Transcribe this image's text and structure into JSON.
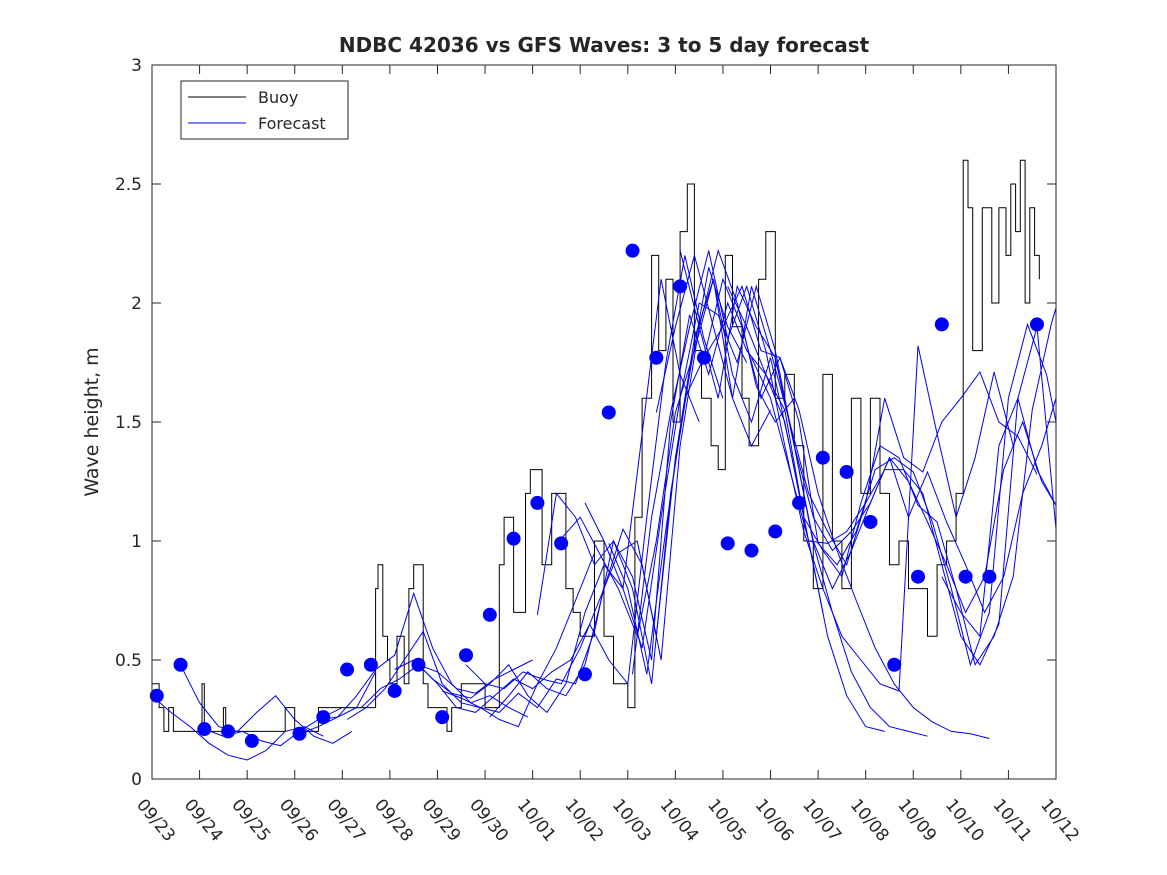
{
  "chart_data": {
    "type": "line",
    "title": "NDBC 42036 vs GFS Waves: 3 to 5 day forecast",
    "xlabel": "",
    "ylabel": "Wave height, m",
    "xlim": [
      0,
      19
    ],
    "ylim": [
      0,
      3
    ],
    "x_tick_labels": [
      "09/23",
      "09/24",
      "09/25",
      "09/26",
      "09/27",
      "09/28",
      "09/29",
      "09/30",
      "10/01",
      "10/02",
      "10/03",
      "10/04",
      "10/05",
      "10/06",
      "10/07",
      "10/08",
      "10/09",
      "10/10",
      "10/11",
      "10/12"
    ],
    "y_ticks": [
      0,
      0.5,
      1,
      1.5,
      2,
      2.5,
      3
    ],
    "y_tick_labels": [
      "0",
      "0.5",
      "1",
      "1.5",
      "2",
      "2.5",
      "3"
    ],
    "legend": {
      "location": "top-left",
      "entries": [
        "Buoy",
        "Forecast"
      ]
    },
    "colors": {
      "buoy": "#000000",
      "forecast": "#0000ee",
      "marker": "#0000ff",
      "axis": "#262626"
    },
    "series": [
      {
        "name": "Buoy",
        "x": [
          0.0,
          0.15,
          0.25,
          0.35,
          0.45,
          0.5,
          1.0,
          1.05,
          1.1,
          1.5,
          1.55,
          2.0,
          2.5,
          2.8,
          3.0,
          3.5,
          4.0,
          4.6,
          4.7,
          4.75,
          4.85,
          4.95,
          5.0,
          5.15,
          5.3,
          5.4,
          5.5,
          5.7,
          5.8,
          6.0,
          6.2,
          6.3,
          6.5,
          7.0,
          7.3,
          7.4,
          7.6,
          7.85,
          7.95,
          8.2,
          8.4,
          8.7,
          8.85,
          9.0,
          9.3,
          9.5,
          9.7,
          10.0,
          10.15,
          10.3,
          10.5,
          10.65,
          10.8,
          10.95,
          11.1,
          11.25,
          11.4,
          11.55,
          11.75,
          11.9,
          12.05,
          12.2,
          12.4,
          12.55,
          12.75,
          12.9,
          13.1,
          13.3,
          13.5,
          13.7,
          13.9,
          14.1,
          14.3,
          14.5,
          14.7,
          14.9,
          15.1,
          15.3,
          15.5,
          15.7,
          15.9,
          16.1,
          16.3,
          16.5,
          16.7,
          16.9,
          17.05,
          17.15,
          17.25,
          17.45,
          17.65,
          17.8,
          17.95,
          18.05,
          18.15,
          18.25,
          18.35,
          18.45,
          18.55,
          18.65
        ],
        "y": [
          0.4,
          0.3,
          0.2,
          0.3,
          0.2,
          0.2,
          0.2,
          0.4,
          0.2,
          0.3,
          0.2,
          0.2,
          0.2,
          0.3,
          0.2,
          0.3,
          0.3,
          0.3,
          0.8,
          0.9,
          0.6,
          0.5,
          0.4,
          0.6,
          0.4,
          0.8,
          0.9,
          0.4,
          0.3,
          0.3,
          0.2,
          0.3,
          0.4,
          0.3,
          0.9,
          1.1,
          0.7,
          1.2,
          1.3,
          0.9,
          1.2,
          0.8,
          0.7,
          0.6,
          1.0,
          0.6,
          0.4,
          0.3,
          1.1,
          1.6,
          2.2,
          1.8,
          2.1,
          1.5,
          2.3,
          2.5,
          1.8,
          1.6,
          1.4,
          1.3,
          2.2,
          1.9,
          1.6,
          1.4,
          2.1,
          2.3,
          1.6,
          1.7,
          1.4,
          1.0,
          0.8,
          1.7,
          1.0,
          0.8,
          1.6,
          1.2,
          1.6,
          1.2,
          0.9,
          1.0,
          0.8,
          0.8,
          0.6,
          0.9,
          1.0,
          1.2,
          2.6,
          2.4,
          1.8,
          2.4,
          2.0,
          2.4,
          2.2,
          2.5,
          2.3,
          2.6,
          2.0,
          2.4,
          2.2,
          2.1
        ]
      },
      {
        "name": "Forecast run 1",
        "x": [
          0.0,
          0.4,
          0.8,
          1.2,
          1.6,
          2.0,
          2.4,
          2.8,
          3.2,
          3.6
        ],
        "y": [
          0.35,
          0.28,
          0.22,
          0.15,
          0.1,
          0.08,
          0.12,
          0.2,
          0.22,
          0.18
        ]
      },
      {
        "name": "Forecast run 2",
        "x": [
          0.6,
          1.0,
          1.4,
          1.8,
          2.2,
          2.6,
          3.0,
          3.4,
          3.8,
          4.2
        ],
        "y": [
          0.48,
          0.32,
          0.22,
          0.2,
          0.28,
          0.35,
          0.25,
          0.18,
          0.15,
          0.2
        ]
      },
      {
        "name": "Forecast run 3",
        "x": [
          1.1,
          1.5,
          1.9,
          2.3,
          2.7,
          3.1,
          3.5,
          3.9,
          4.3,
          4.7
        ],
        "y": [
          0.21,
          0.18,
          0.2,
          0.16,
          0.14,
          0.2,
          0.25,
          0.26,
          0.3,
          0.45
        ]
      },
      {
        "name": "Forecast run 4",
        "x": [
          3.1,
          3.5,
          3.9,
          4.3,
          4.7,
          5.1,
          5.5,
          5.9,
          6.3,
          6.7,
          7.1,
          7.5,
          7.9
        ],
        "y": [
          0.19,
          0.22,
          0.26,
          0.35,
          0.46,
          0.52,
          0.78,
          0.55,
          0.4,
          0.32,
          0.35,
          0.3,
          0.26
        ]
      },
      {
        "name": "Forecast run 5",
        "x": [
          3.6,
          4.0,
          4.4,
          4.8,
          5.2,
          5.6,
          6.0,
          6.4,
          6.8,
          7.2,
          7.6,
          8.0
        ],
        "y": [
          0.26,
          0.3,
          0.3,
          0.38,
          0.42,
          0.48,
          0.45,
          0.38,
          0.36,
          0.42,
          0.46,
          0.5
        ]
      },
      {
        "name": "Forecast run 6",
        "x": [
          4.1,
          4.5,
          4.9,
          5.3,
          5.7,
          6.1,
          6.5,
          6.9,
          7.3,
          7.7,
          8.1,
          8.5,
          8.9,
          9.3
        ],
        "y": [
          0.25,
          0.3,
          0.38,
          0.5,
          0.62,
          0.4,
          0.32,
          0.3,
          0.25,
          0.22,
          0.4,
          0.55,
          0.75,
          0.95
        ]
      },
      {
        "name": "Forecast run 7",
        "x": [
          5.1,
          5.5,
          5.9,
          6.3,
          6.7,
          7.1,
          7.5,
          7.9,
          8.3,
          8.7,
          9.1,
          9.5,
          9.9,
          10.3,
          10.7,
          11.1,
          11.5
        ],
        "y": [
          0.46,
          0.5,
          0.42,
          0.36,
          0.34,
          0.4,
          0.48,
          0.35,
          0.28,
          0.4,
          0.7,
          0.9,
          0.8,
          1.45,
          2.1,
          1.7,
          1.5
        ]
      },
      {
        "name": "Forecast run 8",
        "x": [
          5.6,
          6.0,
          6.4,
          6.8,
          7.2,
          7.6,
          8.0,
          8.4,
          8.8,
          9.2,
          9.6,
          10.0,
          10.4,
          10.8,
          11.2,
          11.6,
          12.0
        ],
        "y": [
          0.48,
          0.4,
          0.3,
          0.28,
          0.35,
          0.42,
          0.38,
          0.45,
          0.5,
          0.65,
          0.5,
          0.4,
          1.1,
          1.75,
          2.2,
          1.85,
          1.6
        ]
      },
      {
        "name": "Forecast run 9",
        "x": [
          6.1,
          6.5,
          6.9,
          7.3,
          7.7,
          8.1,
          8.5,
          8.9,
          9.3,
          9.7,
          10.1,
          10.5,
          10.9,
          11.3,
          11.7,
          12.1,
          12.5
        ],
        "y": [
          0.37,
          0.34,
          0.3,
          0.28,
          0.36,
          0.3,
          0.42,
          0.4,
          0.62,
          1.0,
          0.8,
          0.4,
          1.2,
          1.7,
          2.15,
          1.9,
          1.75
        ]
      },
      {
        "name": "Forecast run 10",
        "x": [
          6.6,
          7.0,
          7.4,
          7.8,
          8.2,
          8.6,
          9.0,
          9.4,
          9.8,
          10.2,
          10.6,
          11.0,
          11.4,
          11.8,
          12.2,
          12.6,
          13.0
        ],
        "y": [
          0.48,
          0.4,
          0.38,
          0.45,
          0.42,
          0.4,
          0.55,
          0.75,
          0.95,
          1.0,
          0.6,
          1.35,
          1.85,
          2.1,
          1.6,
          1.4,
          1.55
        ]
      },
      {
        "name": "Forecast run 11",
        "x": [
          7.1,
          7.5,
          7.9,
          8.3,
          8.7,
          9.1,
          9.5,
          9.9,
          10.3,
          10.7,
          11.1,
          11.5,
          11.9,
          12.3,
          12.7,
          13.1,
          13.5
        ],
        "y": [
          0.26,
          0.35,
          0.45,
          0.38,
          0.35,
          0.48,
          0.8,
          1.05,
          0.9,
          0.5,
          1.4,
          1.9,
          2.22,
          2.0,
          1.65,
          1.5,
          1.6
        ]
      },
      {
        "name": "Forecast run 12",
        "x": [
          8.1,
          8.5,
          8.9,
          9.3,
          9.7,
          10.1,
          10.5,
          10.9,
          11.3,
          11.7,
          12.1,
          12.5,
          12.9,
          13.3,
          13.7,
          14.1
        ],
        "y": [
          0.69,
          1.2,
          1.1,
          0.9,
          1.0,
          0.85,
          0.5,
          1.5,
          1.95,
          1.7,
          2.0,
          1.8,
          1.7,
          1.55,
          1.1,
          0.7
        ]
      },
      {
        "name": "Forecast run 13",
        "x": [
          8.6,
          9.0,
          9.4,
          9.8,
          10.2,
          10.6,
          11.0,
          11.4,
          11.8,
          12.2,
          12.6,
          13.0,
          13.4,
          13.8,
          14.2,
          14.6,
          15.0,
          15.4
        ],
        "y": [
          1.01,
          1.1,
          0.95,
          0.8,
          0.6,
          1.0,
          1.54,
          1.8,
          2.1,
          1.7,
          1.5,
          1.77,
          1.4,
          1.0,
          0.6,
          0.35,
          0.22,
          0.2
        ]
      },
      {
        "name": "Forecast run 14",
        "x": [
          9.1,
          9.5,
          9.9,
          10.3,
          10.7,
          11.1,
          11.5,
          11.9,
          12.3,
          12.7,
          13.1,
          13.5,
          13.9,
          14.3,
          14.7,
          15.1,
          15.5,
          15.9,
          16.3
        ],
        "y": [
          1.16,
          1.0,
          0.8,
          0.55,
          1.1,
          1.6,
          2.0,
          1.95,
          1.75,
          2.07,
          1.8,
          1.4,
          0.99,
          0.7,
          0.45,
          0.3,
          0.22,
          0.2,
          0.18
        ]
      },
      {
        "name": "Forecast run 15",
        "x": [
          9.6,
          10.0,
          10.4,
          10.8,
          11.2,
          11.6,
          12.0,
          12.4,
          12.8,
          13.2,
          13.6,
          14.0,
          14.4,
          14.8,
          15.2,
          15.6,
          16.0,
          16.4,
          16.8,
          17.2,
          17.6
        ],
        "y": [
          0.99,
          0.8,
          0.44,
          1.05,
          1.6,
          1.77,
          2.1,
          1.9,
          1.6,
          1.77,
          1.55,
          1.2,
          0.96,
          0.75,
          0.55,
          0.4,
          0.3,
          0.24,
          0.2,
          0.19,
          0.17
        ]
      },
      {
        "name": "Forecast run 16",
        "x": [
          10.1,
          10.5,
          10.9,
          11.3,
          11.7,
          12.1,
          12.5,
          12.9,
          13.3,
          13.7,
          14.1,
          14.5,
          14.9,
          15.3,
          15.7,
          16.1,
          16.5,
          16.9,
          17.3,
          17.7,
          18.1
        ],
        "y": [
          0.44,
          1.1,
          1.54,
          1.9,
          2.22,
          1.85,
          2.07,
          1.8,
          1.4,
          1.04,
          0.8,
          0.6,
          0.5,
          0.4,
          0.37,
          1.82,
          1.45,
          1.1,
          1.35,
          1.71,
          1.4
        ]
      },
      {
        "name": "Forecast run 17",
        "x": [
          10.6,
          11.0,
          11.4,
          11.8,
          12.2,
          12.6,
          13.0,
          13.4,
          13.8,
          14.2,
          14.6,
          15.0,
          15.4,
          15.8,
          16.2,
          16.6,
          17.0,
          17.4,
          17.8,
          18.2,
          18.6
        ],
        "y": [
          1.54,
          1.9,
          2.2,
          1.9,
          1.6,
          2.07,
          1.8,
          1.5,
          1.2,
          1.04,
          0.9,
          1.16,
          1.6,
          1.35,
          1.29,
          1.5,
          1.6,
          1.71,
          1.5,
          1.44,
          1.28
        ]
      },
      {
        "name": "Forecast run 18",
        "x": [
          11.1,
          11.5,
          11.9,
          12.3,
          12.7,
          13.1,
          13.5,
          13.9,
          14.3,
          14.7,
          15.1,
          15.5,
          15.9,
          16.3,
          16.7,
          17.1,
          17.5,
          17.9,
          18.3,
          18.7,
          19.0
        ],
        "y": [
          2.22,
          1.9,
          1.6,
          2.07,
          1.9,
          1.77,
          1.4,
          1.0,
          0.8,
          0.96,
          1.16,
          1.35,
          1.1,
          1.29,
          1.08,
          0.9,
          0.7,
          0.85,
          1.2,
          1.4,
          1.6
        ]
      },
      {
        "name": "Forecast run 19",
        "x": [
          11.6,
          12.0,
          12.4,
          12.8,
          13.2,
          13.6,
          14.0,
          14.4,
          14.8,
          15.2,
          15.6,
          16.0,
          16.4,
          16.8,
          17.2,
          17.6,
          18.0,
          18.4,
          18.8,
          19.0
        ],
        "y": [
          1.77,
          1.9,
          2.07,
          1.8,
          1.77,
          1.5,
          0.99,
          0.9,
          1.04,
          1.3,
          1.35,
          1.29,
          1.08,
          0.8,
          0.48,
          0.7,
          1.6,
          1.91,
          1.7,
          1.5
        ]
      },
      {
        "name": "Forecast run 20",
        "x": [
          12.1,
          12.5,
          12.9,
          13.3,
          13.7,
          14.1,
          14.5,
          14.9,
          15.3,
          15.7,
          16.1,
          16.5,
          16.9,
          17.3,
          17.7,
          18.1,
          18.5,
          18.9,
          19.0
        ],
        "y": [
          2.07,
          1.9,
          1.7,
          1.5,
          1.1,
          0.96,
          0.85,
          1.16,
          1.4,
          1.35,
          1.15,
          1.08,
          0.8,
          0.48,
          0.6,
          0.85,
          1.55,
          1.91,
          1.98
        ]
      },
      {
        "name": "Forecast run 21",
        "x": [
          12.6,
          13.0,
          13.4,
          13.8,
          14.2,
          14.6,
          15.0,
          15.4,
          15.8,
          16.2,
          16.6,
          17.0,
          17.4,
          17.8,
          18.2,
          18.6,
          19.0
        ],
        "y": [
          1.77,
          1.6,
          1.3,
          1.0,
          0.99,
          1.04,
          1.16,
          1.3,
          1.3,
          1.2,
          0.9,
          0.6,
          0.48,
          0.65,
          1.6,
          1.9,
          1.05
        ]
      },
      {
        "name": "Forecast run 22",
        "x": [
          13.1,
          13.5,
          13.9,
          14.3,
          14.7,
          15.1,
          15.5,
          15.9,
          16.3,
          16.7,
          17.1,
          17.5,
          17.9,
          18.3,
          18.7,
          19.0
        ],
        "y": [
          1.77,
          1.4,
          1.1,
          0.96,
          1.04,
          1.16,
          1.35,
          1.25,
          1.08,
          0.9,
          0.7,
          0.85,
          1.3,
          1.5,
          1.25,
          1.15
        ]
      },
      {
        "name": "Forecast run 23",
        "x": [
          16.6,
          17.0,
          17.4,
          17.8,
          18.2,
          18.6,
          19.0
        ],
        "y": [
          0.85,
          0.7,
          0.6,
          1.4,
          1.6,
          1.3,
          1.15
        ]
      }
    ],
    "markers": {
      "x": [
        0.1,
        0.6,
        1.1,
        1.6,
        2.1,
        3.1,
        3.6,
        4.1,
        4.6,
        5.1,
        5.6,
        6.1,
        6.6,
        7.1,
        7.6,
        8.1,
        8.6,
        9.1,
        9.6,
        10.1,
        10.6,
        11.1,
        11.6,
        12.1,
        12.6,
        13.1,
        13.6,
        14.1,
        14.6,
        15.1,
        15.6,
        16.1,
        16.6,
        17.1,
        17.6,
        18.6
      ],
      "y": [
        0.35,
        0.48,
        0.21,
        0.2,
        0.16,
        0.19,
        0.26,
        0.46,
        0.48,
        0.37,
        0.48,
        0.26,
        0.52,
        0.69,
        1.01,
        1.16,
        0.99,
        0.44,
        1.54,
        2.22,
        1.77,
        2.07,
        1.77,
        0.99,
        0.96,
        1.04,
        1.16,
        1.35,
        1.29,
        1.08,
        0.48,
        0.85,
        1.91,
        0.85,
        0.85,
        1.91
      ]
    }
  }
}
